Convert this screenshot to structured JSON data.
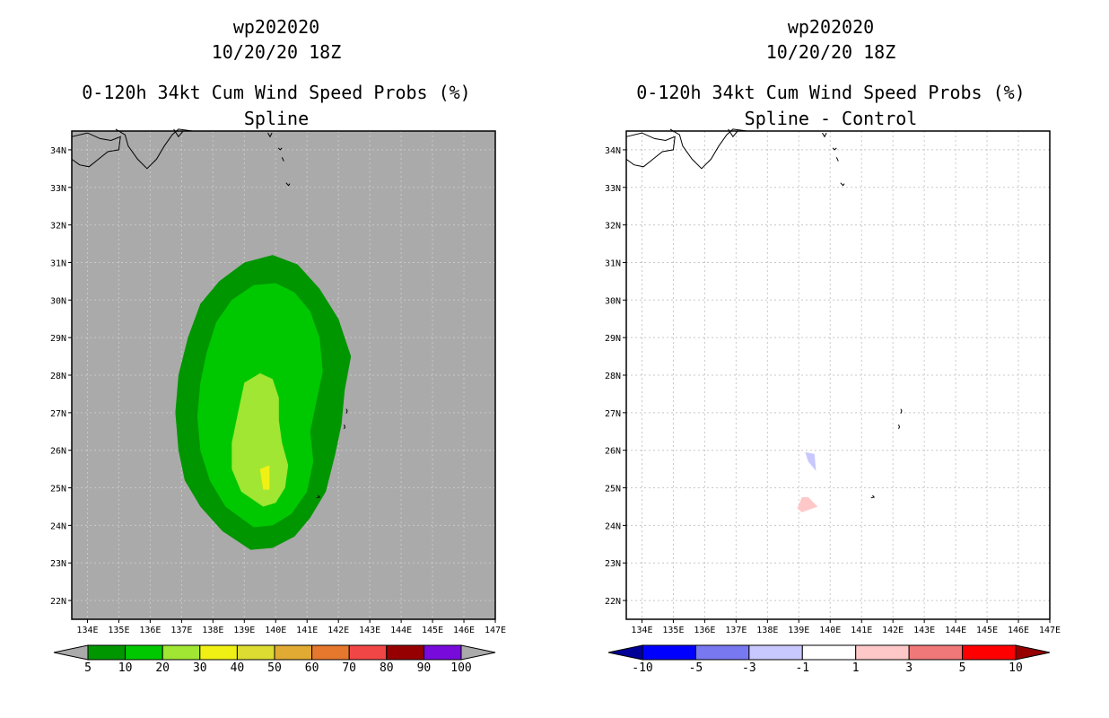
{
  "chart_data": [
    {
      "type": "contour",
      "storm_id": "wp202020",
      "datetime": "10/20/20 18Z",
      "title": "0-120h 34kt Cum Wind Speed Probs (%)",
      "subtitle": "Spline",
      "background": "#aaaaaa",
      "grid_color": "#c8c8c8",
      "xlim": [
        133.5,
        147
      ],
      "ylim": [
        21.5,
        34.5
      ],
      "xticks": [
        "134E",
        "135E",
        "136E",
        "137E",
        "138E",
        "139E",
        "140E",
        "141E",
        "142E",
        "143E",
        "144E",
        "145E",
        "146E",
        "147E"
      ],
      "yticks": [
        "22N",
        "23N",
        "24N",
        "25N",
        "26N",
        "27N",
        "28N",
        "29N",
        "30N",
        "31N",
        "32N",
        "33N",
        "34N"
      ],
      "contours": [
        {
          "level": "5-10",
          "color": "#009600",
          "points": [
            [
              139.2,
              23.35
            ],
            [
              139.9,
              23.4
            ],
            [
              140.6,
              23.7
            ],
            [
              141.1,
              24.2
            ],
            [
              141.6,
              24.9
            ],
            [
              141.9,
              25.9
            ],
            [
              142.1,
              26.7
            ],
            [
              142.2,
              27.6
            ],
            [
              142.4,
              28.5
            ],
            [
              142.0,
              29.5
            ],
            [
              141.4,
              30.3
            ],
            [
              140.7,
              30.95
            ],
            [
              139.9,
              31.2
            ],
            [
              139.0,
              31.0
            ],
            [
              138.2,
              30.5
            ],
            [
              137.6,
              29.9
            ],
            [
              137.2,
              29.0
            ],
            [
              136.9,
              28.0
            ],
            [
              136.8,
              27.0
            ],
            [
              136.9,
              26.0
            ],
            [
              137.1,
              25.2
            ],
            [
              137.6,
              24.5
            ],
            [
              138.3,
              23.85
            ]
          ]
        },
        {
          "level": "10-20",
          "color": "#00c800",
          "points": [
            [
              139.3,
              23.95
            ],
            [
              139.9,
              24.0
            ],
            [
              140.5,
              24.3
            ],
            [
              141.0,
              24.9
            ],
            [
              141.2,
              25.7
            ],
            [
              141.1,
              26.5
            ],
            [
              141.3,
              27.3
            ],
            [
              141.5,
              28.1
            ],
            [
              141.4,
              29.0
            ],
            [
              141.1,
              29.7
            ],
            [
              140.6,
              30.2
            ],
            [
              140.0,
              30.45
            ],
            [
              139.3,
              30.4
            ],
            [
              138.6,
              30.0
            ],
            [
              138.1,
              29.4
            ],
            [
              137.8,
              28.6
            ],
            [
              137.6,
              27.8
            ],
            [
              137.5,
              26.9
            ],
            [
              137.6,
              26.0
            ],
            [
              137.9,
              25.2
            ],
            [
              138.4,
              24.5
            ]
          ]
        },
        {
          "level": "20-30",
          "color": "#a0e632",
          "points": [
            [
              139.6,
              24.5
            ],
            [
              140.0,
              24.6
            ],
            [
              140.3,
              25.0
            ],
            [
              140.4,
              25.6
            ],
            [
              140.2,
              26.2
            ],
            [
              140.1,
              26.8
            ],
            [
              140.1,
              27.4
            ],
            [
              139.9,
              27.9
            ],
            [
              139.5,
              28.05
            ],
            [
              139.0,
              27.8
            ],
            [
              138.8,
              27.0
            ],
            [
              138.6,
              26.2
            ],
            [
              138.6,
              25.5
            ],
            [
              138.9,
              24.9
            ]
          ]
        },
        {
          "level": "30-40",
          "color": "#f0f014",
          "points": [
            [
              139.6,
              24.95
            ],
            [
              139.8,
              24.95
            ],
            [
              139.8,
              25.6
            ],
            [
              139.5,
              25.5
            ]
          ]
        }
      ],
      "colorbar": {
        "labels": [
          "5",
          "10",
          "20",
          "30",
          "40",
          "50",
          "60",
          "70",
          "80",
          "90",
          "100"
        ],
        "colors": [
          "#009600",
          "#00c800",
          "#a0e632",
          "#f0f014",
          "#dcdc32",
          "#e1aa32",
          "#e6782d",
          "#f04646",
          "#960000",
          "#780adc"
        ],
        "end_left_color": "#aaaaaa",
        "end_right_color": "#aaaaaa"
      }
    },
    {
      "type": "contour",
      "storm_id": "wp202020",
      "datetime": "10/20/20 18Z",
      "title": "0-120h 34kt Cum Wind Speed Probs (%)",
      "subtitle": "Spline - Control",
      "background": "#ffffff",
      "grid_color": "#c8c8c8",
      "xlim": [
        133.5,
        147
      ],
      "ylim": [
        21.5,
        34.5
      ],
      "xticks": [
        "134E",
        "135E",
        "136E",
        "137E",
        "138E",
        "139E",
        "140E",
        "141E",
        "142E",
        "143E",
        "144E",
        "145E",
        "146E",
        "147E"
      ],
      "yticks": [
        "22N",
        "23N",
        "24N",
        "25N",
        "26N",
        "27N",
        "28N",
        "29N",
        "30N",
        "31N",
        "32N",
        "33N",
        "34N"
      ],
      "contours": [
        {
          "level": "-3 to -1",
          "color": "#c8c8ff",
          "points": [
            [
              139.2,
              25.95
            ],
            [
              139.5,
              25.9
            ],
            [
              139.55,
              25.45
            ],
            [
              139.3,
              25.7
            ]
          ]
        },
        {
          "level": "1 to 3",
          "color": "#ffc8c8",
          "points": [
            [
              138.95,
              24.45
            ],
            [
              139.1,
              24.75
            ],
            [
              139.3,
              24.75
            ],
            [
              139.6,
              24.5
            ],
            [
              139.1,
              24.35
            ]
          ]
        }
      ],
      "colorbar": {
        "labels": [
          "-10",
          "-5",
          "-3",
          "-1",
          "1",
          "3",
          "5",
          "10"
        ],
        "colors": [
          "#0000ff",
          "#7878f0",
          "#c8c8ff",
          "#ffffff",
          "#ffc8c8",
          "#f07878",
          "#ff0000"
        ],
        "end_left_color": "#000096",
        "end_right_color": "#960000"
      }
    }
  ]
}
